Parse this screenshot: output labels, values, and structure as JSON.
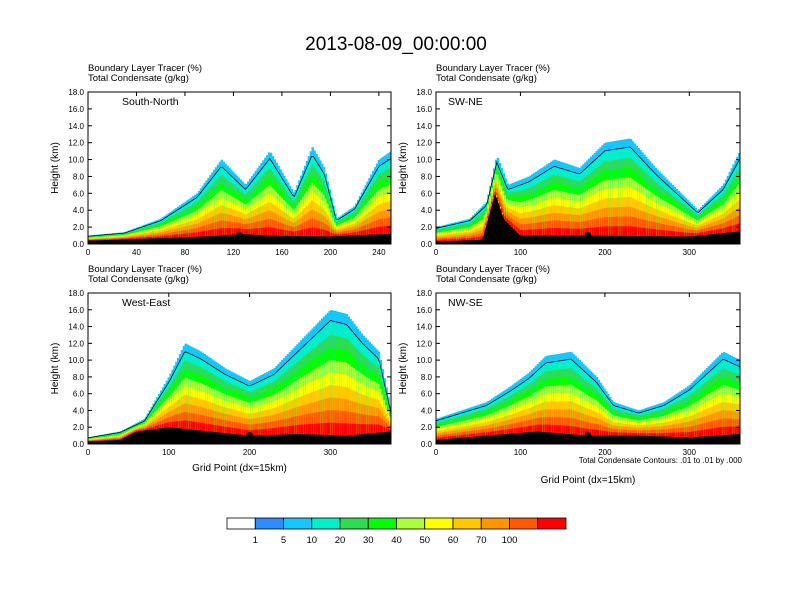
{
  "title": "2013-08-09_00:00:00",
  "chart_data": [
    {
      "type": "heatmap",
      "panel": "South-North",
      "label_lines": [
        "Boundary Layer Tracer   (%)",
        "Total Condensate   (g/kg)"
      ],
      "ylabel": "Height (km)",
      "xlabel": "",
      "xlim": [
        0,
        250
      ],
      "ylim": [
        0,
        18
      ],
      "xticks": [
        0,
        40,
        80,
        120,
        160,
        200,
        240
      ],
      "yticks": [
        "0.0",
        "2.0",
        "4.0",
        "6.0",
        "8.0",
        "10.0",
        "12.0",
        "14.0",
        "16.0",
        "18.0"
      ],
      "terrain_x": [
        0,
        40,
        80,
        110,
        125,
        150,
        200,
        230,
        250
      ],
      "terrain_y": [
        0.4,
        0.6,
        0.8,
        1.0,
        1.2,
        1.0,
        0.9,
        1.1,
        1.2
      ],
      "top_x": [
        0,
        30,
        60,
        90,
        110,
        130,
        150,
        170,
        185,
        195,
        205,
        220,
        240,
        250
      ],
      "top_y": [
        1.0,
        1.4,
        3.0,
        6.0,
        10.0,
        7.0,
        11.0,
        6.0,
        11.5,
        9.0,
        3.0,
        4.5,
        10.0,
        11.0
      ],
      "marker_x": 125,
      "marker_y": 1.0
    },
    {
      "type": "heatmap",
      "panel": "SW-NE",
      "label_lines": [
        "Boundary Layer Tracer   (%)",
        "Total Condensate   (g/kg)"
      ],
      "ylabel": "Height (km)",
      "xlabel": "",
      "xlim": [
        0,
        360
      ],
      "ylim": [
        0,
        18
      ],
      "xticks": [
        0,
        100,
        200,
        300
      ],
      "yticks": [
        "0.0",
        "2.0",
        "4.0",
        "6.0",
        "8.0",
        "10.0",
        "12.0",
        "14.0",
        "16.0",
        "18.0"
      ],
      "terrain_x": [
        0,
        55,
        70,
        80,
        100,
        180,
        300,
        360
      ],
      "terrain_y": [
        0.3,
        0.5,
        6.0,
        3.0,
        1.0,
        1.0,
        0.9,
        1.5
      ],
      "top_x": [
        0,
        40,
        60,
        72,
        85,
        110,
        140,
        170,
        200,
        230,
        260,
        290,
        310,
        340,
        360
      ],
      "top_y": [
        2.0,
        3.0,
        5.0,
        10.5,
        7.0,
        8.0,
        10.0,
        9.0,
        12.0,
        12.5,
        9.0,
        6.0,
        4.0,
        7.0,
        11.0
      ],
      "marker_x": 180,
      "marker_y": 1.0
    },
    {
      "type": "heatmap",
      "panel": "West-East",
      "label_lines": [
        "Boundary Layer Tracer   (%)",
        "Total Condensate   (g/kg)"
      ],
      "ylabel": "Height (km)",
      "xlabel": "Grid Point (dx=15km)",
      "xlim": [
        0,
        375
      ],
      "ylim": [
        0,
        18
      ],
      "xticks": [
        0,
        100,
        200,
        300
      ],
      "yticks": [
        "0.0",
        "2.0",
        "4.0",
        "6.0",
        "8.0",
        "10.0",
        "12.0",
        "14.0",
        "16.0",
        "18.0"
      ],
      "terrain_x": [
        0,
        40,
        60,
        100,
        150,
        200,
        260,
        320,
        375
      ],
      "terrain_y": [
        0.3,
        0.5,
        1.5,
        2.0,
        1.5,
        1.0,
        1.2,
        1.0,
        1.5
      ],
      "top_x": [
        0,
        40,
        70,
        100,
        120,
        140,
        170,
        200,
        230,
        260,
        280,
        300,
        320,
        340,
        360,
        375
      ],
      "top_y": [
        0.8,
        1.5,
        3.0,
        8.0,
        12.0,
        11.0,
        9.0,
        7.5,
        9.0,
        12.0,
        14.0,
        16.0,
        15.5,
        13.0,
        11.0,
        4.0
      ],
      "marker_x": 200,
      "marker_y": 1.0
    },
    {
      "type": "heatmap",
      "panel": "NW-SE",
      "label_lines": [
        "Boundary Layer Tracer   (%)",
        "Total Condensate   (g/kg)"
      ],
      "ylabel": "Height (km)",
      "xlabel": "Grid Point (dx=15km)",
      "xlim": [
        0,
        360
      ],
      "ylim": [
        0,
        18
      ],
      "xticks": [
        0,
        100,
        200,
        300
      ],
      "yticks": [
        "0.0",
        "2.0",
        "4.0",
        "6.0",
        "8.0",
        "10.0",
        "12.0",
        "14.0",
        "16.0",
        "18.0"
      ],
      "terrain_x": [
        0,
        60,
        120,
        180,
        240,
        300,
        360
      ],
      "terrain_y": [
        0.5,
        1.0,
        1.5,
        1.0,
        1.0,
        0.8,
        1.2
      ],
      "top_x": [
        0,
        30,
        60,
        90,
        110,
        130,
        160,
        190,
        210,
        240,
        270,
        300,
        320,
        340,
        360
      ],
      "top_y": [
        3.0,
        4.0,
        5.0,
        7.0,
        8.5,
        10.5,
        11.0,
        8.0,
        5.0,
        4.0,
        5.0,
        7.0,
        9.0,
        11.0,
        10.0
      ],
      "marker_x": 180,
      "marker_y": 1.0,
      "note": "Total Condensate Contours: .01 to .01 by .000"
    }
  ],
  "colorbar": {
    "labels": [
      "1",
      "5",
      "10",
      "20",
      "30",
      "40",
      "50",
      "60",
      "70",
      "100"
    ],
    "colors": [
      "#ffffff",
      "#2d8cff",
      "#14c8ff",
      "#00f0c8",
      "#2ddc50",
      "#00ff00",
      "#aaff3c",
      "#ffff00",
      "#ffc800",
      "#ff9600",
      "#ff5a00",
      "#ff0000"
    ]
  }
}
